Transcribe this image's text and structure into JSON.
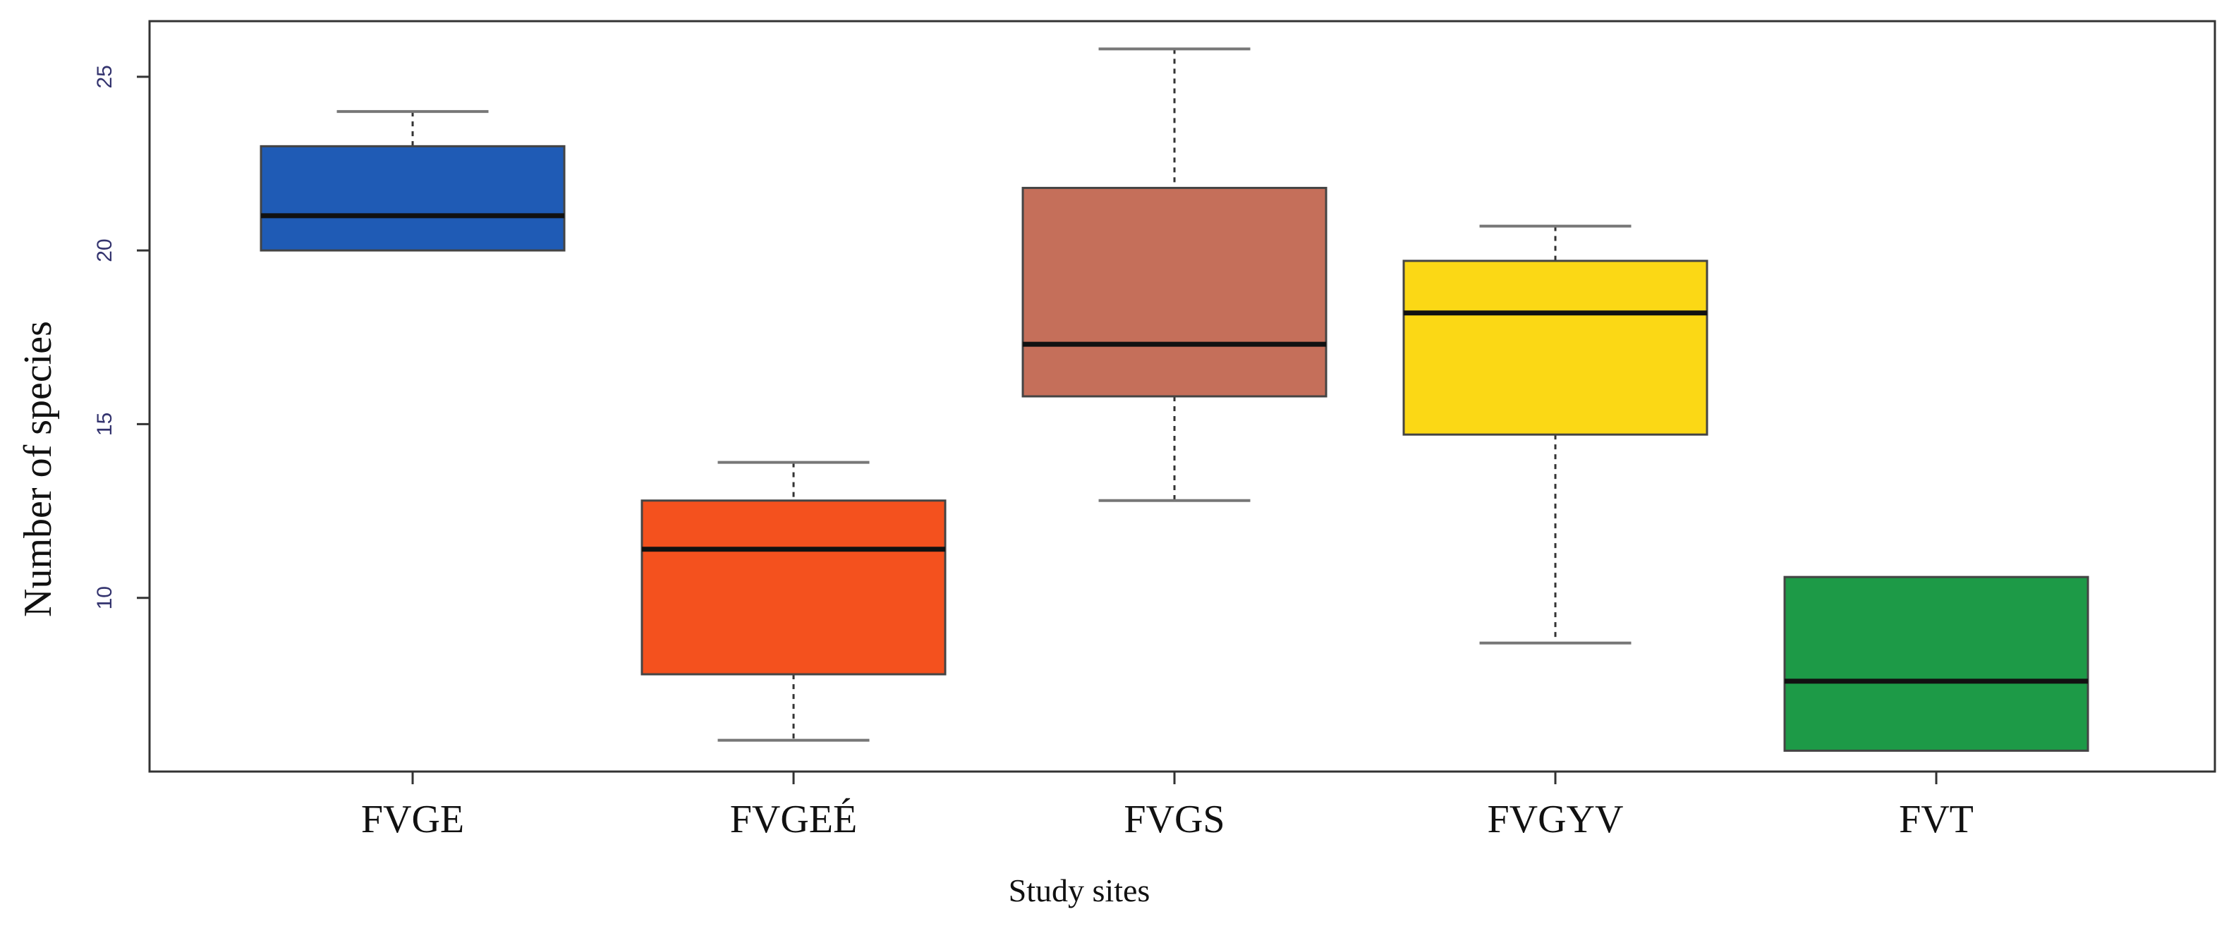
{
  "chart_data": {
    "type": "boxplot",
    "title": "",
    "xlabel": "Study sites",
    "ylabel": "Number of species",
    "ylim": [
      5,
      26.6
    ],
    "yticks": [
      10,
      15,
      20,
      25
    ],
    "ytick_labels": [
      "10",
      "15",
      "20",
      "25"
    ],
    "grid": false,
    "categories": [
      "FVGE",
      "FVGEÉ",
      "FVGS",
      "FVGYV",
      "FVT"
    ],
    "boxes": [
      {
        "category": "FVGE",
        "whisker_low": 20,
        "q1": 20,
        "median": 21,
        "q3": 23,
        "whisker_high": 24,
        "color": "#1f5bb5"
      },
      {
        "category": "FVGEÉ",
        "whisker_low": 5.9,
        "q1": 7.8,
        "median": 11.4,
        "q3": 12.8,
        "whisker_high": 13.9,
        "color": "#f4511e"
      },
      {
        "category": "FVGS",
        "whisker_low": 12.8,
        "q1": 15.8,
        "median": 17.3,
        "q3": 21.8,
        "whisker_high": 25.8,
        "color": "#c56f5a"
      },
      {
        "category": "FVGYV",
        "whisker_low": 8.7,
        "q1": 14.7,
        "median": 18.2,
        "q3": 19.7,
        "whisker_high": 20.7,
        "color": "#fbd815"
      },
      {
        "category": "FVT",
        "whisker_low": 5.6,
        "q1": 5.6,
        "median": 7.6,
        "q3": 10.6,
        "whisker_high": 10.6,
        "color": "#1d9a47"
      }
    ]
  }
}
